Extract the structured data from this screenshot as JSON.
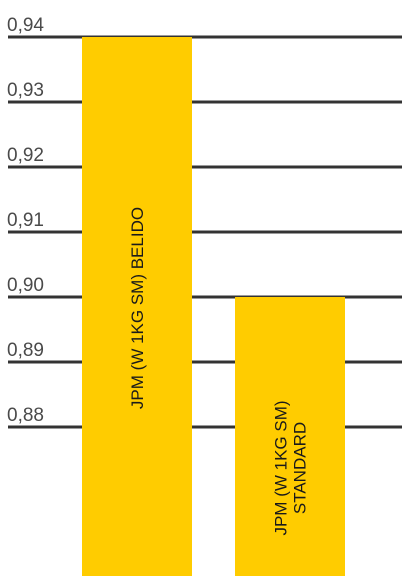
{
  "chart_data": {
    "type": "bar",
    "orientation": "vertical",
    "title": "",
    "xlabel": "",
    "ylabel": "",
    "categories": [
      [
        "JPM (W 1KG SM) BELIDO"
      ],
      [
        "JPM (W 1KG SM)",
        "STANDARD"
      ]
    ],
    "values": [
      0.94,
      0.9
    ],
    "ylim": [
      0.874,
      0.94
    ],
    "y_ticks": [
      0.94,
      0.93,
      0.92,
      0.91,
      0.9,
      0.89,
      0.88
    ],
    "y_tick_labels": [
      "0,94",
      "0,93",
      "0,92",
      "0,91",
      "0,90",
      "0,89",
      "0,88"
    ],
    "grid": true,
    "legend": "none",
    "colors": {
      "bar": "#FFCC00",
      "grid": "#333333",
      "tick_text": "#4a4a4a",
      "label_text": "#1a1a1a"
    }
  }
}
